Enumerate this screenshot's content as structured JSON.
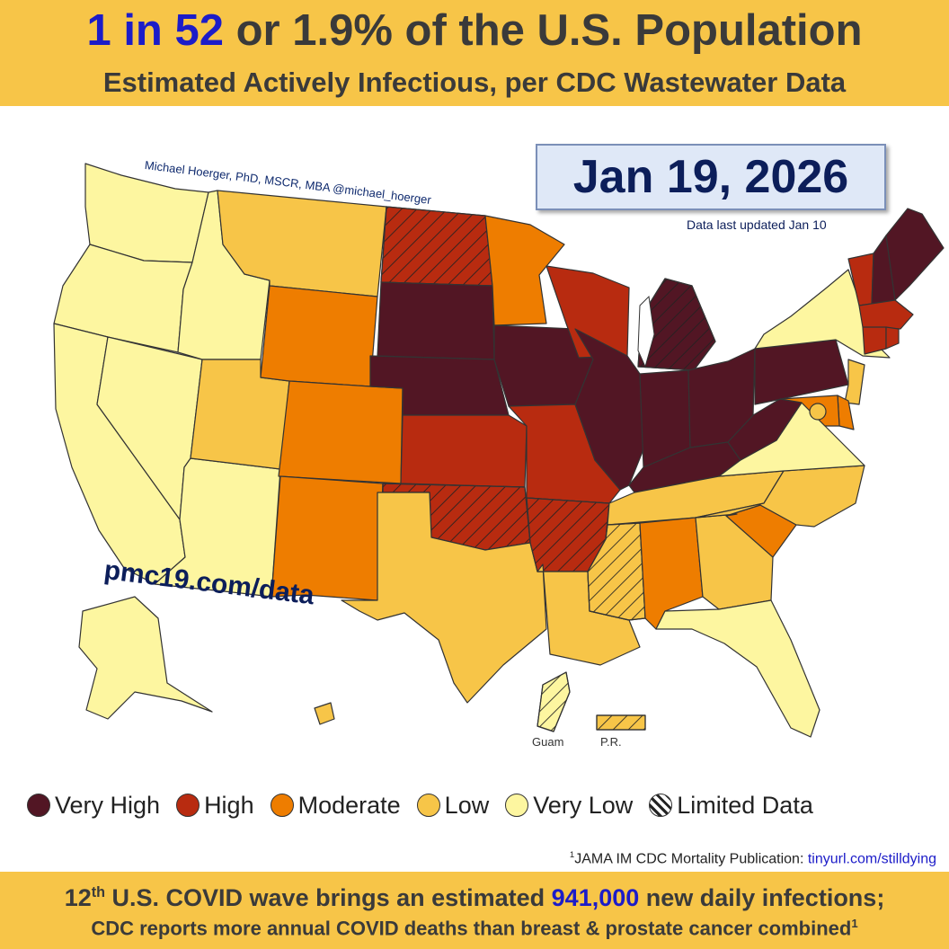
{
  "header": {
    "headline_highlight": "1 in 52",
    "headline_rest": " or 1.9% of the U.S. Population",
    "subtitle": "Estimated Actively Infectious, per CDC Wastewater Data"
  },
  "credit": "Michael Hoerger, PhD, MSCR, MBA  @michael_hoerger",
  "date": "Jan 19, 2026",
  "data_updated": "Data last updated Jan 10",
  "website": "pmc19.com/data",
  "territories": {
    "guam": "Guam",
    "pr": "P.R."
  },
  "colors": {
    "very_high": "#521624",
    "high": "#b82b10",
    "moderate": "#ee7d00",
    "low": "#f7c548",
    "very_low": "#fdf6a0"
  },
  "legend": [
    {
      "label": "Very High",
      "level": "very_high"
    },
    {
      "label": "High",
      "level": "high"
    },
    {
      "label": "Moderate",
      "level": "moderate"
    },
    {
      "label": "Low",
      "level": "low"
    },
    {
      "label": "Very Low",
      "level": "very_low"
    },
    {
      "label": "Limited Data",
      "level": "limited"
    }
  ],
  "footnote": {
    "text": "JAMA IM CDC Mortality Publication: ",
    "sup": "1",
    "link": "tinyurl.com/stilldying"
  },
  "footer": {
    "line1_prefix": "12",
    "line1_sup": "th",
    "line1_mid": " U.S. COVID wave brings an estimated ",
    "line1_highlight": "941,000",
    "line1_suffix": " new daily infections;",
    "line2": "CDC reports more annual COVID deaths than breast & prostate cancer combined",
    "line2_sup": "1"
  },
  "states": {
    "WA": "very_low",
    "OR": "very_low",
    "CA": "very_low",
    "NV": "very_low",
    "ID": "very_low",
    "AZ": "very_low",
    "MT": "low",
    "UT": "low",
    "WY": "moderate",
    "CO": "moderate",
    "NM": "moderate",
    "ND": "high",
    "SD": "very_high",
    "NE": "very_high",
    "KS": "high",
    "OK": "high",
    "TX": "low",
    "MN": "moderate",
    "IA": "very_high",
    "MO": "high",
    "AR": "high",
    "LA": "low",
    "WI": "high",
    "IL": "very_high",
    "MI": "very_high",
    "IN": "very_high",
    "OH": "very_high",
    "KY": "very_high",
    "TN": "low",
    "MS": "low",
    "AL": "moderate",
    "GA": "low",
    "FL": "very_low",
    "SC": "moderate",
    "NC": "low",
    "VA": "very_low",
    "WV": "very_high",
    "PA": "very_high",
    "NY": "very_low",
    "NJ": "low",
    "DE": "moderate",
    "MD": "moderate",
    "VT": "high",
    "NH": "very_high",
    "ME": "very_high",
    "MA": "high",
    "CT": "high",
    "RI": "high",
    "AK": "very_low",
    "HI": "low",
    "GU": "very_low",
    "PR": "low",
    "DC": "low"
  },
  "limited_data": [
    "ND",
    "OK",
    "AR",
    "MS",
    "MI",
    "GU",
    "PR"
  ]
}
